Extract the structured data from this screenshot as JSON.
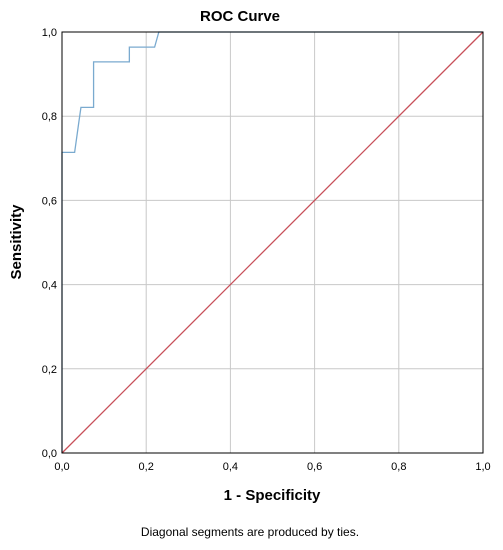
{
  "chart_data": {
    "type": "line",
    "title": "ROC Curve",
    "xlabel": "1 - Specificity",
    "ylabel": "Sensitivity",
    "footnote": "Diagonal segments are produced by ties.",
    "xlim": [
      0,
      1
    ],
    "ylim": [
      0,
      1
    ],
    "xticks": [
      "0,0",
      "0,2",
      "0,4",
      "0,6",
      "0,8",
      "1,0"
    ],
    "yticks": [
      "0,0",
      "0,2",
      "0,4",
      "0,6",
      "0,8",
      "1,0"
    ],
    "grid": true,
    "series": [
      {
        "color": "#7aaacf",
        "x": [
          0,
          0,
          0.03,
          0.04,
          0.045,
          0.075,
          0.075,
          0.16,
          0.16,
          0.22,
          0.23,
          0.24,
          1.0
        ],
        "y": [
          0,
          0.714,
          0.714,
          0.786,
          0.821,
          0.821,
          0.929,
          0.929,
          0.964,
          0.964,
          1.0,
          1.0,
          1.0
        ]
      },
      {
        "color": "#c8505a",
        "x": [
          0,
          1
        ],
        "y": [
          0,
          1
        ]
      }
    ]
  }
}
